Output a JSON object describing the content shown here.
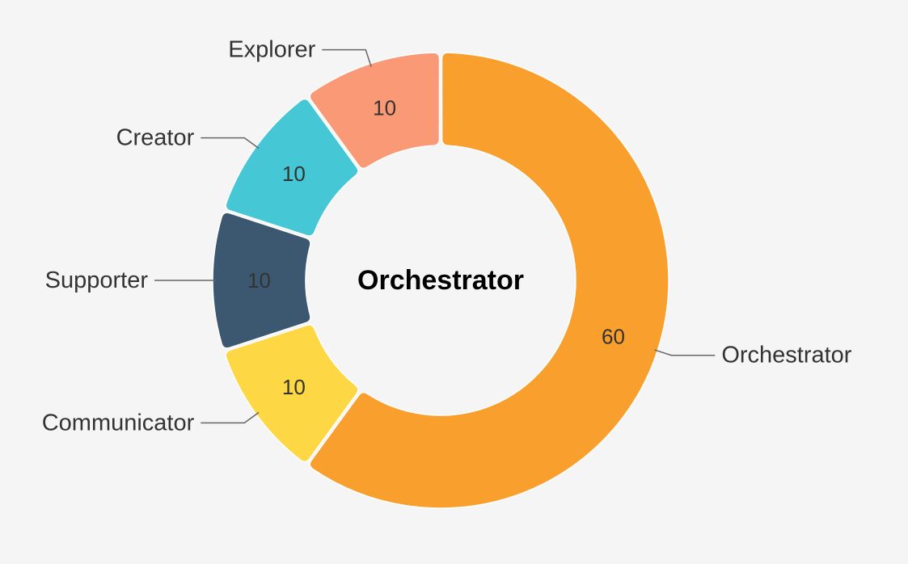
{
  "chart_data": {
    "type": "pie",
    "variant": "donut",
    "center_label": "Orchestrator",
    "slices": [
      {
        "name": "Orchestrator",
        "value": 60,
        "color": "#f99f2e"
      },
      {
        "name": "Communicator",
        "value": 10,
        "color": "#fdd844"
      },
      {
        "name": "Supporter",
        "value": 10,
        "color": "#3c5870"
      },
      {
        "name": "Creator",
        "value": 10,
        "color": "#45c7d6"
      },
      {
        "name": "Explorer",
        "value": 10,
        "color": "#fa9976"
      }
    ],
    "legend": "none"
  }
}
